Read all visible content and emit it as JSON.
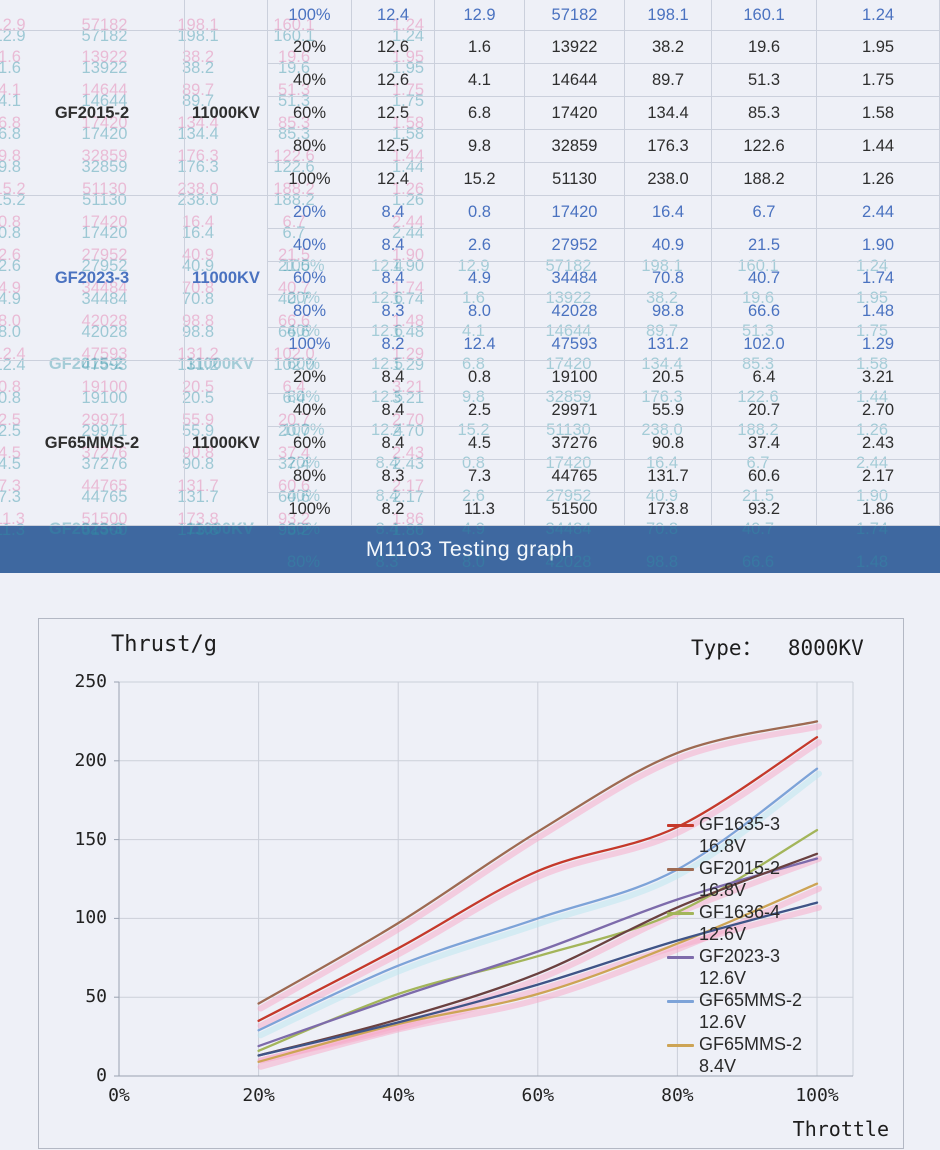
{
  "banner": {
    "title": "M1103 Testing graph",
    "bg_color": "#3e68a0"
  },
  "table": {
    "partial_top_row": {
      "style": "blue",
      "cells": [
        "100%",
        "12.4",
        "12.9",
        "57182",
        "198.1",
        "160.1",
        "1.24"
      ]
    },
    "sections": [
      {
        "motor": "GF2015-2",
        "kv": "11000KV",
        "style": "dark",
        "rows": [
          [
            "20%",
            "12.6",
            "1.6",
            "13922",
            "38.2",
            "19.6",
            "1.95"
          ],
          [
            "40%",
            "12.6",
            "4.1",
            "14644",
            "89.7",
            "51.3",
            "1.75"
          ],
          [
            "60%",
            "12.5",
            "6.8",
            "17420",
            "134.4",
            "85.3",
            "1.58"
          ],
          [
            "80%",
            "12.5",
            "9.8",
            "32859",
            "176.3",
            "122.6",
            "1.44"
          ],
          [
            "100%",
            "12.4",
            "15.2",
            "51130",
            "238.0",
            "188.2",
            "1.26"
          ]
        ]
      },
      {
        "motor": "GF2023-3",
        "kv": "11000KV",
        "style": "blue",
        "rows": [
          [
            "20%",
            "8.4",
            "0.8",
            "17420",
            "16.4",
            "6.7",
            "2.44"
          ],
          [
            "40%",
            "8.4",
            "2.6",
            "27952",
            "40.9",
            "21.5",
            "1.90"
          ],
          [
            "60%",
            "8.4",
            "4.9",
            "34484",
            "70.8",
            "40.7",
            "1.74"
          ],
          [
            "80%",
            "8.3",
            "8.0",
            "42028",
            "98.8",
            "66.6",
            "1.48"
          ],
          [
            "100%",
            "8.2",
            "12.4",
            "47593",
            "131.2",
            "102.0",
            "1.29"
          ]
        ]
      },
      {
        "motor": "GF65MMS-2",
        "kv": "11000KV",
        "style": "dark",
        "rows": [
          [
            "20%",
            "8.4",
            "0.8",
            "19100",
            "20.5",
            "6.4",
            "3.21"
          ],
          [
            "40%",
            "8.4",
            "2.5",
            "29971",
            "55.9",
            "20.7",
            "2.70"
          ],
          [
            "60%",
            "8.4",
            "4.5",
            "37276",
            "90.8",
            "37.4",
            "2.43"
          ],
          [
            "80%",
            "8.3",
            "7.3",
            "44765",
            "131.7",
            "60.6",
            "2.17"
          ],
          [
            "100%",
            "8.2",
            "11.3",
            "51500",
            "173.8",
            "93.2",
            "1.86"
          ]
        ]
      }
    ]
  },
  "chart_data": {
    "type": "line",
    "title": "Thrust/g",
    "type_label": "Type：  8000KV",
    "xlabel": "Throttle",
    "x_percent": [
      20,
      40,
      60,
      80,
      100
    ],
    "x_tick_labels": [
      "0%",
      "20%",
      "40%",
      "60%",
      "80%",
      "100%"
    ],
    "x_tick_values": [
      0,
      20,
      40,
      60,
      80,
      100
    ],
    "ylim": [
      0,
      250
    ],
    "yticks": [
      0,
      50,
      100,
      150,
      200,
      250
    ],
    "grid": true,
    "legend_position": "inside-right",
    "series": [
      {
        "name": "GF1635-3",
        "volt": "16.8V",
        "color": "#c5392b",
        "ghost": "#f7a8c8",
        "in_legend": true,
        "values": [
          35,
          81,
          130,
          158,
          215
        ]
      },
      {
        "name": "GF2015-2",
        "volt": "16.8V",
        "color": "#9e6a52",
        "ghost": "#f7a8c8",
        "in_legend": true,
        "values": [
          46,
          97,
          155,
          205,
          225
        ]
      },
      {
        "name": "GF1636-4",
        "volt": "12.6V",
        "color": "#a3b55a",
        "ghost": null,
        "in_legend": true,
        "values": [
          16,
          52,
          76,
          104,
          156
        ]
      },
      {
        "name": "GF2023-3",
        "volt": "12.6V",
        "color": "#7d6bab",
        "ghost": null,
        "in_legend": true,
        "values": [
          19,
          50,
          79,
          112,
          138
        ]
      },
      {
        "name": "GF65MMS-2",
        "volt": "12.6V",
        "color": "#7da3d8",
        "ghost": "#b9e6ef",
        "in_legend": true,
        "values": [
          29,
          70,
          100,
          131,
          195
        ]
      },
      {
        "name": "GF65MMS-2",
        "volt": "8.4V",
        "color": "#cda455",
        "ghost": "#f7a8c8",
        "in_legend": true,
        "values": [
          9,
          33,
          52,
          84,
          122
        ]
      },
      {
        "name": "",
        "volt": "",
        "color": "#6b4140",
        "ghost": "#f7a8c8",
        "in_legend": false,
        "values": [
          13,
          36,
          65,
          107,
          141
        ]
      },
      {
        "name": "",
        "volt": "",
        "color": "#3f5487",
        "ghost": "#f7a8c8",
        "in_legend": false,
        "values": [
          13,
          34,
          58,
          86,
          110
        ]
      }
    ]
  },
  "artifacts": {
    "ghost_pink": "#e687b4",
    "ghost_cyan": "#2f93a6"
  }
}
